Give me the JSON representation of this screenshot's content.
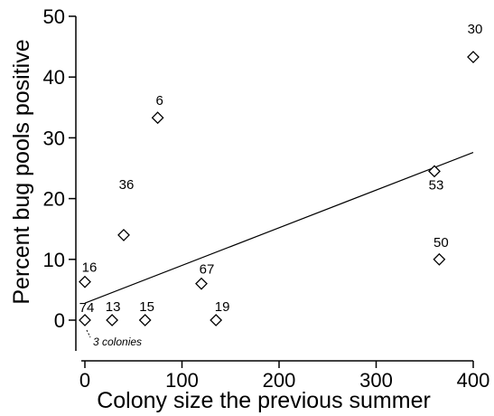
{
  "chart_data": {
    "type": "scatter",
    "xlabel": "Colony size the previous summer",
    "ylabel": "Percent bug pools positive",
    "xlim": [
      0,
      400
    ],
    "ylim": [
      0,
      50
    ],
    "x_ticks": [
      0,
      100,
      200,
      300,
      400
    ],
    "y_ticks": [
      0,
      10,
      20,
      30,
      40,
      50
    ],
    "grid": false,
    "marker": "open-diamond",
    "points": [
      {
        "x": 0,
        "y": 0,
        "label": "74"
      },
      {
        "x": 0,
        "y": 6.3,
        "label": "16"
      },
      {
        "x": 28,
        "y": 0,
        "label": "13"
      },
      {
        "x": 40,
        "y": 14,
        "label": "36"
      },
      {
        "x": 62,
        "y": 0,
        "label": "15"
      },
      {
        "x": 75,
        "y": 33.3,
        "label": "6"
      },
      {
        "x": 120,
        "y": 6,
        "label": "67"
      },
      {
        "x": 135,
        "y": 0,
        "label": "19"
      },
      {
        "x": 360,
        "y": 24.5,
        "label": "53"
      },
      {
        "x": 365,
        "y": 10,
        "label": "50"
      },
      {
        "x": 400,
        "y": 43.3,
        "label": "30"
      }
    ],
    "trendline": {
      "x": [
        0,
        400
      ],
      "y": [
        2.8,
        27.6
      ]
    },
    "annotations": [
      {
        "text": "3 colonies",
        "x": 0,
        "y": 0
      }
    ]
  }
}
